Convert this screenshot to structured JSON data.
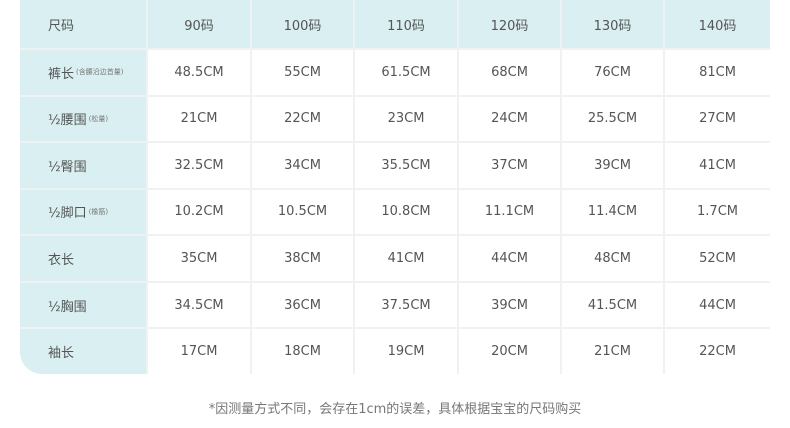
{
  "table": {
    "header": [
      "尺码",
      "90码",
      "100码",
      "110码",
      "120码",
      "130码",
      "140码"
    ],
    "rows": [
      {
        "label": "裤长",
        "note": "(含腰沿边首量)",
        "cells": [
          "48.5CM",
          "55CM",
          "61.5CM",
          "68CM",
          "76CM",
          "81CM"
        ]
      },
      {
        "label": "½腰围",
        "note": "(松量)",
        "cells": [
          "21CM",
          "22CM",
          "23CM",
          "24CM",
          "25.5CM",
          "27CM"
        ]
      },
      {
        "label": "½臀围",
        "cells": [
          "32.5CM",
          "34CM",
          "35.5CM",
          "37CM",
          "39CM",
          "41CM"
        ]
      },
      {
        "label": "½脚口",
        "note": "(橡筋)",
        "cells": [
          "10.2CM",
          "10.5CM",
          "10.8CM",
          "11.1CM",
          "11.4CM",
          "1.7CM"
        ]
      },
      {
        "label": "衣长",
        "cells": [
          "35CM",
          "38CM",
          "41CM",
          "44CM",
          "48CM",
          "52CM"
        ]
      },
      {
        "label": "½胸围",
        "cells": [
          "34.5CM",
          "36CM",
          "37.5CM",
          "39CM",
          "41.5CM",
          "44CM"
        ]
      },
      {
        "label": "袖长",
        "cells": [
          "17CM",
          "18CM",
          "19CM",
          "20CM",
          "21CM",
          "22CM"
        ]
      }
    ]
  },
  "footnote": "*因测量方式不同，会存在1cm的误差，具体根据宝宝的尺码购买"
}
